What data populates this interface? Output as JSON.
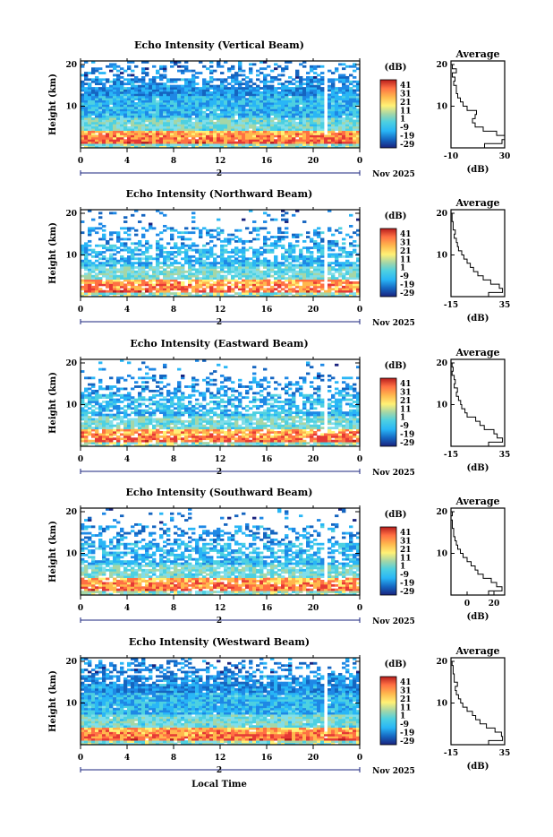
{
  "figure": {
    "xlabel": "Local Time",
    "date_label": "Nov 2025",
    "colorbar_unit": "(dB)",
    "colorbar_ticks": [
      "41",
      "31",
      "21",
      "11",
      "1",
      "-9",
      "-19",
      "-29"
    ],
    "colormap": [
      "#1a237e",
      "#1565c0",
      "#1e88e5",
      "#29b6f6",
      "#4dd0e1",
      "#80deea",
      "#a5d6a7",
      "#fff176",
      "#ffb74d",
      "#ff7043",
      "#e53935",
      "#b71c1c"
    ]
  },
  "chart_data": [
    {
      "type": "heatmap",
      "title": "Echo Intensity (Vertical Beam)",
      "ylabel": "Height (km)",
      "xlim": [
        0,
        24
      ],
      "x_ticks": [
        "0",
        "4",
        "8",
        "12",
        "16",
        "20",
        "0"
      ],
      "ylim": [
        0,
        20
      ],
      "y_ticks": [
        "20",
        "10"
      ],
      "day_marker": "2",
      "clim": [
        -29,
        41
      ],
      "profile": {
        "title": "Average",
        "xlabel": "(dB)",
        "x_ticks": [
          "-10",
          "30"
        ],
        "xlim": [
          -10,
          30
        ],
        "y_ticks": [
          "20",
          "10"
        ],
        "heights": [
          0.5,
          1.5,
          2.5,
          3.5,
          4.5,
          5.5,
          6.5,
          7.5,
          8.5,
          9.5,
          10.5,
          11.5,
          12.5,
          13.5,
          14.5,
          15.5,
          16.5,
          17.5,
          18.5,
          19.5
        ],
        "values": [
          15,
          28,
          30,
          24,
          14,
          8,
          6,
          8,
          9,
          2,
          -1,
          -3,
          -5,
          -6,
          -6,
          -8,
          -7,
          -9,
          -6,
          -9
        ]
      }
    },
    {
      "type": "heatmap",
      "title": "Echo Intensity (Northward Beam)",
      "ylabel": "Height (km)",
      "xlim": [
        0,
        24
      ],
      "x_ticks": [
        "0",
        "4",
        "8",
        "12",
        "16",
        "20",
        "0"
      ],
      "ylim": [
        0,
        20
      ],
      "y_ticks": [
        "20",
        "10"
      ],
      "day_marker": "2",
      "clim": [
        -29,
        41
      ],
      "profile": {
        "title": "Average",
        "xlabel": "(dB)",
        "x_ticks": [
          "-15",
          "35"
        ],
        "xlim": [
          -15,
          35
        ],
        "y_ticks": [
          "20",
          "10"
        ],
        "heights": [
          0.5,
          1.5,
          2.5,
          3.5,
          4.5,
          5.5,
          6.5,
          7.5,
          8.5,
          9.5,
          10.5,
          11.5,
          12.5,
          13.5,
          14.5,
          15.5,
          16.5,
          17.5,
          18.5,
          19.5
        ],
        "values": [
          20,
          33,
          30,
          22,
          15,
          10,
          6,
          3,
          0,
          -3,
          -5,
          -8,
          -9,
          -10,
          -12,
          -11,
          -13,
          -13,
          -14,
          -14
        ]
      }
    },
    {
      "type": "heatmap",
      "title": "Echo Intensity (Eastward Beam)",
      "ylabel": "Height (km)",
      "xlim": [
        0,
        24
      ],
      "x_ticks": [
        "0",
        "4",
        "8",
        "12",
        "16",
        "20",
        "0"
      ],
      "ylim": [
        0,
        20
      ],
      "y_ticks": [
        "20",
        "10"
      ],
      "day_marker": "2",
      "clim": [
        -29,
        41
      ],
      "profile": {
        "title": "Average",
        "xlabel": "(dB)",
        "x_ticks": [
          "-15",
          "35"
        ],
        "xlim": [
          -15,
          35
        ],
        "y_ticks": [
          "20",
          "10"
        ],
        "heights": [
          0.5,
          1.5,
          2.5,
          3.5,
          4.5,
          5.5,
          6.5,
          7.5,
          8.5,
          9.5,
          10.5,
          11.5,
          12.5,
          13.5,
          14.5,
          15.5,
          16.5,
          17.5,
          18.5,
          19.5
        ],
        "values": [
          20,
          33,
          28,
          25,
          16,
          12,
          8,
          0,
          -2,
          -5,
          -6,
          -8,
          -10,
          -9,
          -12,
          -11,
          -12,
          -14,
          -13,
          -14
        ]
      }
    },
    {
      "type": "heatmap",
      "title": "Echo Intensity (Southward Beam)",
      "ylabel": "Height (km)",
      "xlim": [
        0,
        24
      ],
      "x_ticks": [
        "0",
        "4",
        "8",
        "12",
        "16",
        "20",
        "0"
      ],
      "ylim": [
        0,
        20
      ],
      "y_ticks": [
        "20",
        "10"
      ],
      "day_marker": "2",
      "clim": [
        -29,
        41
      ],
      "profile": {
        "title": "Average",
        "xlabel": "(dB)",
        "x_ticks": [
          "0",
          "20"
        ],
        "xlim": [
          -12,
          28
        ],
        "y_ticks": [
          "20",
          "10"
        ],
        "heights": [
          0.5,
          1.5,
          2.5,
          3.5,
          4.5,
          5.5,
          6.5,
          7.5,
          8.5,
          9.5,
          10.5,
          11.5,
          12.5,
          13.5,
          14.5,
          15.5,
          16.5,
          17.5,
          18.5,
          19.5
        ],
        "values": [
          16,
          26,
          22,
          18,
          12,
          8,
          6,
          3,
          0,
          -3,
          -5,
          -7,
          -8,
          -9,
          -10,
          -10,
          -11,
          -11,
          -12,
          -11
        ]
      }
    },
    {
      "type": "heatmap",
      "title": "Echo Intensity (Westward Beam)",
      "ylabel": "Height (km)",
      "xlim": [
        0,
        24
      ],
      "x_ticks": [
        "0",
        "4",
        "8",
        "12",
        "16",
        "20",
        "0"
      ],
      "ylim": [
        0,
        20
      ],
      "y_ticks": [
        "20",
        "10"
      ],
      "day_marker": "2",
      "clim": [
        -29,
        41
      ],
      "profile": {
        "title": "Average",
        "xlabel": "(dB)",
        "x_ticks": [
          "-15",
          "35"
        ],
        "xlim": [
          -15,
          35
        ],
        "y_ticks": [
          "20",
          "10"
        ],
        "heights": [
          0.5,
          1.5,
          2.5,
          3.5,
          4.5,
          5.5,
          6.5,
          7.5,
          8.5,
          9.5,
          10.5,
          11.5,
          12.5,
          13.5,
          14.5,
          15.5,
          16.5,
          17.5,
          18.5,
          19.5
        ],
        "values": [
          20,
          33,
          32,
          26,
          18,
          12,
          8,
          5,
          0,
          -4,
          -6,
          -8,
          -10,
          -11,
          -9,
          -12,
          -12,
          -13,
          -13,
          -14
        ]
      }
    }
  ]
}
